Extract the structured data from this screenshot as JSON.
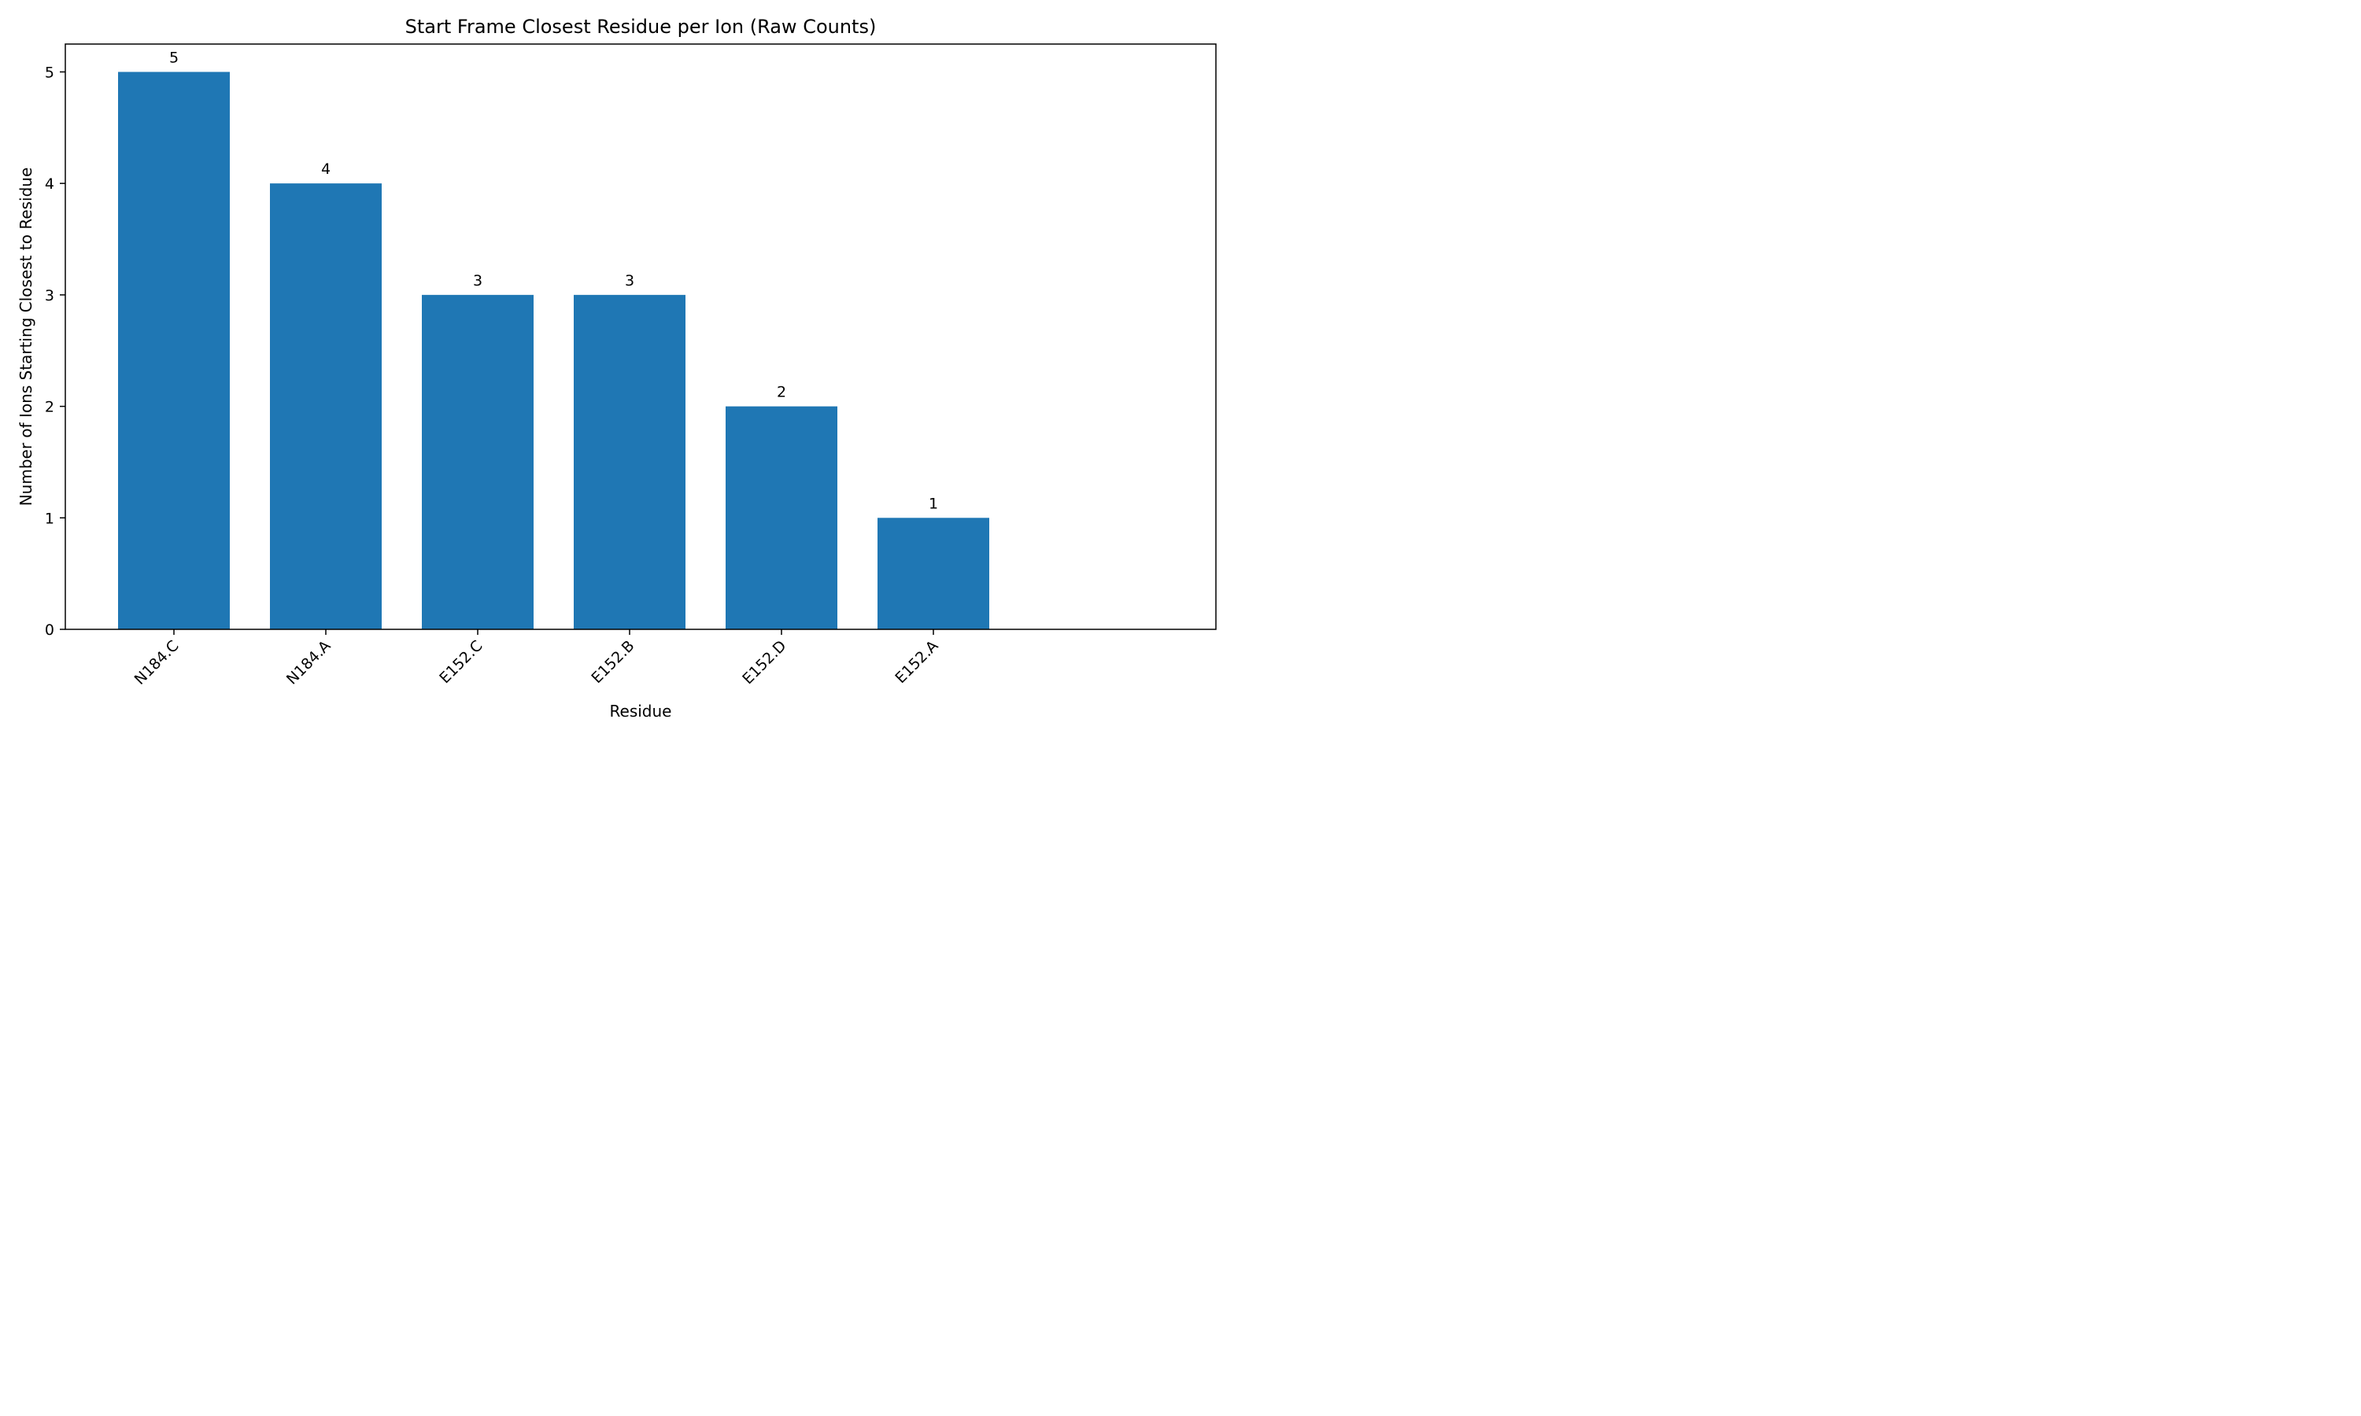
{
  "chart_data": {
    "type": "bar",
    "title": "Start Frame Closest Residue per Ion (Raw Counts)",
    "xlabel": "Residue",
    "ylabel": "Number of Ions Starting Closest to Residue",
    "categories": [
      "N184.C",
      "N184.A",
      "E152.C",
      "E152.B",
      "E152.D",
      "E152.A"
    ],
    "values": [
      5,
      4,
      3,
      3,
      2,
      1
    ],
    "ylim": [
      0,
      5.25
    ],
    "yticks": [
      0,
      1,
      2,
      3,
      4,
      5
    ],
    "grid": false,
    "bar_color": "#1f77b4",
    "data_labels": [
      "5",
      "4",
      "3",
      "3",
      "2",
      "1"
    ],
    "xtick_rotation_deg": 45
  }
}
